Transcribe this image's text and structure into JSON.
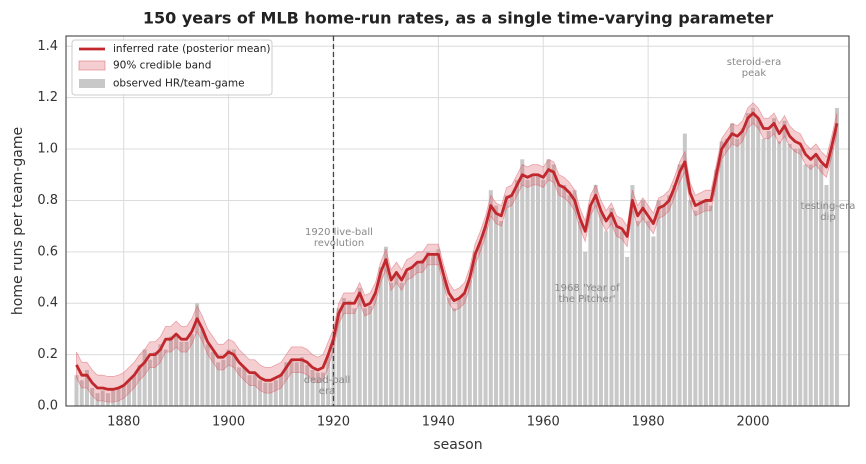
{
  "chart_data": {
    "type": "line",
    "title": "150 years of MLB home-run rates, as a single time-varying parameter",
    "xlabel": "season",
    "ylabel": "home runs per team-game",
    "xlim": [
      1869,
      2018.3
    ],
    "ylim": [
      0,
      1.44
    ],
    "xticks": [
      1880,
      1900,
      1920,
      1940,
      1960,
      1980,
      2000
    ],
    "yticks": [
      {
        "value": 0,
        "label": "0.0"
      },
      0.2,
      0.4,
      0.6,
      0.8,
      {
        "value": 1,
        "label": "1.0"
      },
      1.2,
      1.4
    ],
    "grid": true,
    "legend": "upper left",
    "vline": 1920,
    "x": [
      1871,
      1872,
      1873,
      1874,
      1875,
      1876,
      1877,
      1878,
      1879,
      1880,
      1881,
      1882,
      1883,
      1884,
      1885,
      1886,
      1887,
      1888,
      1889,
      1890,
      1891,
      1892,
      1893,
      1894,
      1895,
      1896,
      1897,
      1898,
      1899,
      1900,
      1901,
      1902,
      1903,
      1904,
      1905,
      1906,
      1907,
      1908,
      1909,
      1910,
      1911,
      1912,
      1913,
      1914,
      1915,
      1916,
      1917,
      1918,
      1919,
      1920,
      1921,
      1922,
      1923,
      1924,
      1925,
      1926,
      1927,
      1928,
      1929,
      1930,
      1931,
      1932,
      1933,
      1934,
      1935,
      1936,
      1937,
      1938,
      1939,
      1940,
      1941,
      1942,
      1943,
      1944,
      1945,
      1946,
      1947,
      1948,
      1949,
      1950,
      1951,
      1952,
      1953,
      1954,
      1955,
      1956,
      1957,
      1958,
      1959,
      1960,
      1961,
      1962,
      1963,
      1964,
      1965,
      1966,
      1967,
      1968,
      1969,
      1970,
      1971,
      1972,
      1973,
      1974,
      1975,
      1976,
      1977,
      1978,
      1979,
      1980,
      1981,
      1982,
      1983,
      1984,
      1985,
      1986,
      1987,
      1988,
      1989,
      1990,
      1991,
      1992,
      1993,
      1994,
      1995,
      1996,
      1997,
      1998,
      1999,
      2000,
      2001,
      2002,
      2003,
      2004,
      2005,
      2006,
      2007,
      2008,
      2009,
      2010,
      2011,
      2012,
      2013,
      2014,
      2015,
      2016
    ],
    "series": [
      {
        "name": "inferred rate (posterior mean)",
        "color": "#c0282d",
        "values": [
          0.16,
          0.12,
          0.12,
          0.09,
          0.07,
          0.07,
          0.065,
          0.065,
          0.07,
          0.08,
          0.1,
          0.12,
          0.15,
          0.17,
          0.2,
          0.2,
          0.22,
          0.26,
          0.26,
          0.28,
          0.26,
          0.26,
          0.29,
          0.34,
          0.3,
          0.25,
          0.22,
          0.19,
          0.19,
          0.21,
          0.2,
          0.17,
          0.15,
          0.13,
          0.13,
          0.11,
          0.1,
          0.1,
          0.11,
          0.12,
          0.15,
          0.18,
          0.18,
          0.18,
          0.17,
          0.15,
          0.14,
          0.15,
          0.2,
          0.26,
          0.36,
          0.4,
          0.4,
          0.4,
          0.44,
          0.39,
          0.4,
          0.44,
          0.52,
          0.57,
          0.49,
          0.52,
          0.49,
          0.53,
          0.54,
          0.56,
          0.56,
          0.59,
          0.59,
          0.59,
          0.51,
          0.44,
          0.41,
          0.42,
          0.44,
          0.5,
          0.59,
          0.64,
          0.7,
          0.78,
          0.75,
          0.74,
          0.81,
          0.82,
          0.86,
          0.9,
          0.89,
          0.9,
          0.9,
          0.89,
          0.92,
          0.91,
          0.86,
          0.85,
          0.83,
          0.8,
          0.73,
          0.68,
          0.78,
          0.82,
          0.76,
          0.72,
          0.75,
          0.7,
          0.69,
          0.66,
          0.8,
          0.74,
          0.77,
          0.74,
          0.71,
          0.77,
          0.78,
          0.8,
          0.85,
          0.91,
          0.95,
          0.83,
          0.78,
          0.79,
          0.8,
          0.8,
          0.9,
          1.0,
          1.03,
          1.06,
          1.05,
          1.07,
          1.12,
          1.14,
          1.12,
          1.08,
          1.08,
          1.1,
          1.06,
          1.09,
          1.05,
          1.03,
          1.02,
          0.98,
          0.96,
          0.98,
          0.95,
          0.93,
          1.01,
          1.1
        ]
      },
      {
        "name": "90% credible band",
        "color": "#d6505a",
        "lower": [
          0.11,
          0.07,
          0.07,
          0.04,
          0.02,
          0.02,
          0.015,
          0.015,
          0.02,
          0.03,
          0.05,
          0.07,
          0.1,
          0.12,
          0.15,
          0.15,
          0.17,
          0.21,
          0.21,
          0.23,
          0.21,
          0.21,
          0.24,
          0.29,
          0.25,
          0.2,
          0.17,
          0.14,
          0.14,
          0.16,
          0.15,
          0.12,
          0.1,
          0.08,
          0.08,
          0.06,
          0.05,
          0.05,
          0.06,
          0.07,
          0.1,
          0.13,
          0.13,
          0.13,
          0.12,
          0.1,
          0.09,
          0.1,
          0.15,
          0.22,
          0.32,
          0.36,
          0.36,
          0.36,
          0.4,
          0.35,
          0.36,
          0.4,
          0.48,
          0.53,
          0.45,
          0.48,
          0.45,
          0.49,
          0.5,
          0.52,
          0.52,
          0.55,
          0.55,
          0.55,
          0.47,
          0.4,
          0.37,
          0.38,
          0.4,
          0.46,
          0.55,
          0.6,
          0.66,
          0.74,
          0.71,
          0.7,
          0.77,
          0.78,
          0.82,
          0.86,
          0.85,
          0.86,
          0.86,
          0.85,
          0.88,
          0.87,
          0.82,
          0.81,
          0.79,
          0.76,
          0.69,
          0.64,
          0.74,
          0.78,
          0.72,
          0.68,
          0.71,
          0.66,
          0.65,
          0.62,
          0.76,
          0.7,
          0.73,
          0.7,
          0.67,
          0.73,
          0.74,
          0.76,
          0.81,
          0.87,
          0.91,
          0.79,
          0.74,
          0.75,
          0.76,
          0.76,
          0.86,
          0.96,
          0.99,
          1.02,
          1.01,
          1.03,
          1.08,
          1.1,
          1.08,
          1.04,
          1.04,
          1.06,
          1.02,
          1.05,
          1.01,
          0.99,
          0.98,
          0.94,
          0.92,
          0.94,
          0.91,
          0.89,
          0.97,
          1.06
        ],
        "upper": [
          0.21,
          0.17,
          0.17,
          0.14,
          0.12,
          0.12,
          0.115,
          0.115,
          0.12,
          0.13,
          0.15,
          0.17,
          0.2,
          0.22,
          0.25,
          0.25,
          0.27,
          0.31,
          0.31,
          0.33,
          0.31,
          0.31,
          0.34,
          0.39,
          0.35,
          0.3,
          0.27,
          0.24,
          0.24,
          0.26,
          0.25,
          0.22,
          0.2,
          0.18,
          0.18,
          0.16,
          0.15,
          0.15,
          0.16,
          0.17,
          0.2,
          0.23,
          0.23,
          0.23,
          0.22,
          0.2,
          0.19,
          0.2,
          0.25,
          0.3,
          0.4,
          0.44,
          0.44,
          0.44,
          0.48,
          0.43,
          0.44,
          0.48,
          0.56,
          0.61,
          0.53,
          0.56,
          0.53,
          0.57,
          0.58,
          0.6,
          0.6,
          0.63,
          0.63,
          0.63,
          0.55,
          0.48,
          0.45,
          0.46,
          0.48,
          0.54,
          0.63,
          0.68,
          0.74,
          0.82,
          0.79,
          0.78,
          0.85,
          0.86,
          0.9,
          0.94,
          0.93,
          0.94,
          0.94,
          0.93,
          0.96,
          0.95,
          0.9,
          0.89,
          0.87,
          0.84,
          0.77,
          0.72,
          0.82,
          0.86,
          0.8,
          0.76,
          0.79,
          0.74,
          0.73,
          0.7,
          0.84,
          0.78,
          0.81,
          0.78,
          0.75,
          0.81,
          0.82,
          0.84,
          0.89,
          0.95,
          0.99,
          0.87,
          0.82,
          0.83,
          0.84,
          0.84,
          0.94,
          1.04,
          1.07,
          1.1,
          1.09,
          1.11,
          1.16,
          1.18,
          1.16,
          1.12,
          1.12,
          1.14,
          1.1,
          1.13,
          1.09,
          1.07,
          1.06,
          1.02,
          1.0,
          1.02,
          0.99,
          0.97,
          1.05,
          1.14
        ]
      },
      {
        "name": "observed HR/team-game",
        "color": "#c8c8c8",
        "values": [
          0.12,
          0.1,
          0.14,
          0.07,
          0.05,
          0.06,
          0.05,
          0.06,
          0.07,
          0.08,
          0.1,
          0.12,
          0.16,
          0.22,
          0.18,
          0.21,
          0.24,
          0.22,
          0.27,
          0.28,
          0.25,
          0.25,
          0.28,
          0.4,
          0.3,
          0.24,
          0.21,
          0.17,
          0.18,
          0.22,
          0.22,
          0.15,
          0.15,
          0.12,
          0.13,
          0.1,
          0.09,
          0.09,
          0.1,
          0.12,
          0.17,
          0.18,
          0.17,
          0.19,
          0.16,
          0.14,
          0.13,
          0.13,
          0.2,
          0.26,
          0.38,
          0.42,
          0.41,
          0.38,
          0.46,
          0.38,
          0.39,
          0.44,
          0.54,
          0.62,
          0.48,
          0.52,
          0.48,
          0.52,
          0.54,
          0.56,
          0.57,
          0.6,
          0.59,
          0.61,
          0.5,
          0.42,
          0.38,
          0.42,
          0.44,
          0.49,
          0.6,
          0.64,
          0.7,
          0.84,
          0.78,
          0.72,
          0.82,
          0.82,
          0.88,
          0.96,
          0.88,
          0.9,
          0.9,
          0.88,
          0.96,
          0.94,
          0.86,
          0.86,
          0.82,
          0.84,
          0.72,
          0.6,
          0.78,
          0.86,
          0.76,
          0.68,
          0.77,
          0.7,
          0.68,
          0.58,
          0.86,
          0.72,
          0.8,
          0.72,
          0.66,
          0.8,
          0.78,
          0.82,
          0.86,
          0.94,
          1.06,
          0.8,
          0.76,
          0.8,
          0.8,
          0.78,
          0.92,
          1.03,
          1.04,
          1.1,
          1.04,
          1.08,
          1.14,
          1.16,
          1.12,
          1.04,
          1.07,
          1.12,
          1.03,
          1.11,
          1.02,
          1.0,
          1.0,
          0.94,
          0.94,
          0.98,
          0.94,
          0.86,
          1.01,
          1.16
        ]
      }
    ],
    "annotations": [
      {
        "x": 1920,
        "lines": [
          "dead-ball",
          "era"
        ]
      },
      {
        "x": 1920,
        "lines": [
          "1920 live-ball",
          "revolution"
        ]
      },
      {
        "x": 1968,
        "lines": [
          "1968 'Year of",
          "the Pitcher'"
        ]
      },
      {
        "x": 2000,
        "lines": [
          "steroid-era",
          "peak"
        ]
      },
      {
        "x": 2014,
        "lines": [
          "testing-era",
          "dip"
        ]
      }
    ]
  }
}
